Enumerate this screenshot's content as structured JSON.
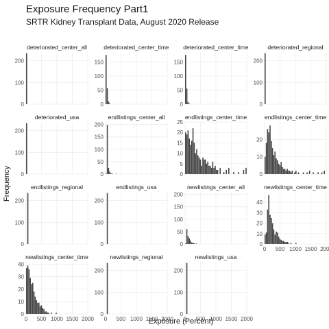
{
  "header": {
    "title": "Exposure Frequency Part1",
    "subtitle": "SRTR Kidney Transplant Data, August 2020 Release"
  },
  "axes": {
    "xlabel": "Exposure (Percent)",
    "ylabel": "Frequency"
  },
  "chart_data": {
    "type": "bar",
    "title": "Exposure Frequency Part1",
    "subtitle": "SRTR Kidney Transplant Data, August 2020 Release",
    "xlabel": "Exposure (Percent)",
    "ylabel": "Frequency",
    "xlim": [
      0,
      2000
    ],
    "x_ticks": [
      0,
      500,
      1000,
      1500,
      2000
    ],
    "bar_color": "#474747",
    "grid": true,
    "bin_width": 40,
    "panels": [
      {
        "name": "deteriorated_center_all",
        "ylim": [
          0,
          240
        ],
        "y_ticks": [
          0,
          100,
          200
        ],
        "bins": [
          {
            "x": 0,
            "count": 235
          }
        ]
      },
      {
        "name": "deteriorated_center_time",
        "ylim": [
          0,
          185
        ],
        "y_ticks": [
          0,
          50,
          100,
          150
        ],
        "bins": [
          {
            "x": 0,
            "count": 175
          },
          {
            "x": 40,
            "count": 57
          },
          {
            "x": 80,
            "count": 10
          },
          {
            "x": 120,
            "count": 3
          }
        ]
      },
      {
        "name": "deteriorated_center_time",
        "ylim": [
          0,
          185
        ],
        "y_ticks": [
          0,
          50,
          100,
          150
        ],
        "bins": [
          {
            "x": 0,
            "count": 175
          },
          {
            "x": 40,
            "count": 55
          },
          {
            "x": 80,
            "count": 8
          },
          {
            "x": 120,
            "count": 2
          }
        ]
      },
      {
        "name": "deteriorated_regional",
        "ylim": [
          0,
          240
        ],
        "y_ticks": [
          0,
          100,
          200
        ],
        "bins": [
          {
            "x": 0,
            "count": 235
          }
        ]
      },
      {
        "name": "deteriorated_usa",
        "ylim": [
          0,
          240
        ],
        "y_ticks": [
          0,
          100,
          200
        ],
        "bins": [
          {
            "x": 0,
            "count": 235
          }
        ]
      },
      {
        "name": "endlistings_center_all",
        "ylim": [
          0,
          210
        ],
        "y_ticks": [
          0,
          50,
          100,
          150,
          200
        ],
        "bins": [
          {
            "x": 0,
            "count": 2
          },
          {
            "x": 40,
            "count": 198
          },
          {
            "x": 80,
            "count": 25
          },
          {
            "x": 120,
            "count": 10
          },
          {
            "x": 160,
            "count": 3
          },
          {
            "x": 200,
            "count": 2
          },
          {
            "x": 320,
            "count": 1
          }
        ]
      },
      {
        "name": "endlistings_center_time",
        "ylim": [
          0,
          25
        ],
        "y_ticks": [
          0,
          5,
          10,
          15,
          20,
          25
        ],
        "bins": [
          {
            "x": 0,
            "count": 20
          },
          {
            "x": 40,
            "count": 19
          },
          {
            "x": 80,
            "count": 21
          },
          {
            "x": 120,
            "count": 17
          },
          {
            "x": 160,
            "count": 14
          },
          {
            "x": 200,
            "count": 16
          },
          {
            "x": 240,
            "count": 22
          },
          {
            "x": 280,
            "count": 15
          },
          {
            "x": 320,
            "count": 10
          },
          {
            "x": 360,
            "count": 12
          },
          {
            "x": 400,
            "count": 9
          },
          {
            "x": 440,
            "count": 8
          },
          {
            "x": 480,
            "count": 7
          },
          {
            "x": 520,
            "count": 4
          },
          {
            "x": 560,
            "count": 8
          },
          {
            "x": 600,
            "count": 7
          },
          {
            "x": 640,
            "count": 7
          },
          {
            "x": 680,
            "count": 5
          },
          {
            "x": 720,
            "count": 6
          },
          {
            "x": 760,
            "count": 4
          },
          {
            "x": 800,
            "count": 4
          },
          {
            "x": 840,
            "count": 3
          },
          {
            "x": 880,
            "count": 6
          },
          {
            "x": 920,
            "count": 3
          },
          {
            "x": 960,
            "count": 4
          },
          {
            "x": 1000,
            "count": 2
          },
          {
            "x": 1040,
            "count": 2
          },
          {
            "x": 1120,
            "count": 3
          },
          {
            "x": 1240,
            "count": 1
          },
          {
            "x": 1320,
            "count": 2
          },
          {
            "x": 1400,
            "count": 3
          },
          {
            "x": 1560,
            "count": 1
          },
          {
            "x": 1720,
            "count": 1
          },
          {
            "x": 1880,
            "count": 2
          },
          {
            "x": 1960,
            "count": 3
          }
        ]
      },
      {
        "name": "endlistings_center_time",
        "ylim": [
          0,
          30
        ],
        "y_ticks": [
          0,
          10,
          20
        ],
        "bins": [
          {
            "x": 0,
            "count": 10
          },
          {
            "x": 40,
            "count": 18
          },
          {
            "x": 80,
            "count": 26
          },
          {
            "x": 120,
            "count": 24
          },
          {
            "x": 160,
            "count": 28
          },
          {
            "x": 200,
            "count": 19
          },
          {
            "x": 240,
            "count": 15
          },
          {
            "x": 280,
            "count": 11
          },
          {
            "x": 320,
            "count": 13
          },
          {
            "x": 360,
            "count": 9
          },
          {
            "x": 400,
            "count": 8
          },
          {
            "x": 440,
            "count": 6
          },
          {
            "x": 480,
            "count": 5
          },
          {
            "x": 520,
            "count": 7
          },
          {
            "x": 560,
            "count": 4
          },
          {
            "x": 600,
            "count": 3
          },
          {
            "x": 640,
            "count": 3
          },
          {
            "x": 680,
            "count": 2
          },
          {
            "x": 720,
            "count": 3
          },
          {
            "x": 760,
            "count": 2
          },
          {
            "x": 800,
            "count": 2
          },
          {
            "x": 840,
            "count": 1
          },
          {
            "x": 880,
            "count": 2
          },
          {
            "x": 960,
            "count": 1
          },
          {
            "x": 1000,
            "count": 2
          },
          {
            "x": 1080,
            "count": 1
          },
          {
            "x": 1240,
            "count": 1
          },
          {
            "x": 1360,
            "count": 1
          },
          {
            "x": 1440,
            "count": 2
          },
          {
            "x": 1560,
            "count": 1
          },
          {
            "x": 1720,
            "count": 1
          },
          {
            "x": 1840,
            "count": 1
          },
          {
            "x": 1920,
            "count": 2
          }
        ]
      },
      {
        "name": "endlistings_regional",
        "ylim": [
          0,
          240
        ],
        "y_ticks": [
          0,
          100,
          200
        ],
        "bins": [
          {
            "x": 40,
            "count": 235
          }
        ]
      },
      {
        "name": "endlistings_usa",
        "ylim": [
          0,
          240
        ],
        "y_ticks": [
          0,
          100,
          200
        ],
        "bins": [
          {
            "x": 40,
            "count": 235
          }
        ]
      },
      {
        "name": "newlistings_center_all",
        "ylim": [
          0,
          210
        ],
        "y_ticks": [
          0,
          50,
          100,
          150,
          200
        ],
        "bins": [
          {
            "x": 0,
            "count": 2
          },
          {
            "x": 40,
            "count": 60
          },
          {
            "x": 80,
            "count": 32
          },
          {
            "x": 120,
            "count": 23
          },
          {
            "x": 160,
            "count": 14
          },
          {
            "x": 200,
            "count": 6
          },
          {
            "x": 240,
            "count": 5
          },
          {
            "x": 280,
            "count": 3
          },
          {
            "x": 360,
            "count": 2
          }
        ]
      },
      {
        "name": "newlistings_center_time",
        "ylim": [
          0,
          50
        ],
        "y_ticks": [
          0,
          10,
          20,
          30,
          40
        ],
        "bins": [
          {
            "x": 0,
            "count": 9
          },
          {
            "x": 40,
            "count": 11
          },
          {
            "x": 80,
            "count": 33
          },
          {
            "x": 120,
            "count": 47
          },
          {
            "x": 160,
            "count": 28
          },
          {
            "x": 200,
            "count": 25
          },
          {
            "x": 240,
            "count": 20
          },
          {
            "x": 280,
            "count": 14
          },
          {
            "x": 320,
            "count": 9
          },
          {
            "x": 360,
            "count": 12
          },
          {
            "x": 400,
            "count": 11
          },
          {
            "x": 440,
            "count": 7
          },
          {
            "x": 480,
            "count": 5
          },
          {
            "x": 520,
            "count": 4
          },
          {
            "x": 560,
            "count": 3
          },
          {
            "x": 600,
            "count": 3
          },
          {
            "x": 640,
            "count": 2
          },
          {
            "x": 680,
            "count": 2
          },
          {
            "x": 720,
            "count": 2
          },
          {
            "x": 760,
            "count": 1
          },
          {
            "x": 840,
            "count": 1
          },
          {
            "x": 1000,
            "count": 1
          }
        ]
      },
      {
        "name": "newlistings_center_time",
        "ylim": [
          0,
          42
        ],
        "y_ticks": [
          0,
          10,
          20,
          30,
          40
        ],
        "bins": [
          {
            "x": 0,
            "count": 37
          },
          {
            "x": 40,
            "count": 39
          },
          {
            "x": 80,
            "count": 36
          },
          {
            "x": 120,
            "count": 29
          },
          {
            "x": 160,
            "count": 24
          },
          {
            "x": 200,
            "count": 25
          },
          {
            "x": 240,
            "count": 18
          },
          {
            "x": 280,
            "count": 14
          },
          {
            "x": 320,
            "count": 11
          },
          {
            "x": 360,
            "count": 9
          },
          {
            "x": 400,
            "count": 9
          },
          {
            "x": 440,
            "count": 6
          },
          {
            "x": 480,
            "count": 7
          },
          {
            "x": 520,
            "count": 5
          },
          {
            "x": 560,
            "count": 4
          },
          {
            "x": 600,
            "count": 2
          },
          {
            "x": 640,
            "count": 2
          },
          {
            "x": 680,
            "count": 1
          },
          {
            "x": 720,
            "count": 1
          },
          {
            "x": 800,
            "count": 1
          },
          {
            "x": 960,
            "count": 1
          }
        ]
      },
      {
        "name": "newlistings_regional",
        "ylim": [
          0,
          240
        ],
        "y_ticks": [
          0,
          100,
          200
        ],
        "bins": [
          {
            "x": 40,
            "count": 235
          }
        ]
      },
      {
        "name": "newlistings_usa",
        "ylim": [
          0,
          240
        ],
        "y_ticks": [
          0,
          100,
          200
        ],
        "bins": [
          {
            "x": 40,
            "count": 235
          }
        ]
      }
    ]
  }
}
